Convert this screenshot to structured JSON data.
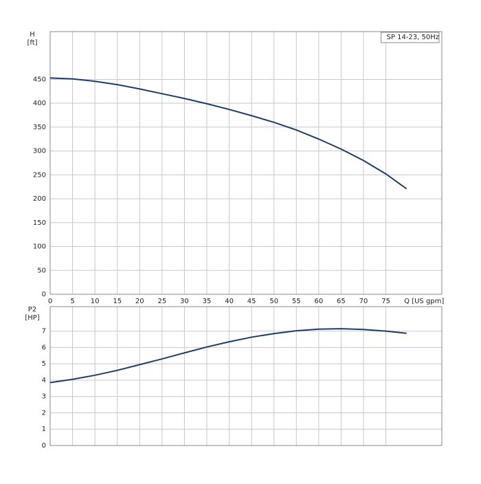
{
  "chart_data": [
    {
      "type": "line",
      "legend_text": "SP 14-23, 50Hz",
      "y_label": "H",
      "y_unit": "[ft]",
      "x_label": "Q [US gpm]",
      "x": [
        0,
        5,
        10,
        15,
        20,
        25,
        30,
        35,
        40,
        45,
        50,
        55,
        60,
        65,
        70,
        75,
        79.6
      ],
      "series": [
        {
          "color": "#1c3b6e",
          "values": [
            453,
            451,
            446,
            439,
            430,
            420,
            410,
            399,
            387,
            374,
            360,
            344,
            325,
            304,
            280,
            252,
            221
          ]
        }
      ],
      "xlim": [
        0,
        87.5
      ],
      "xticks": [
        0,
        5,
        10,
        15,
        20,
        25,
        30,
        35,
        40,
        45,
        50,
        55,
        60,
        65,
        70,
        75
      ],
      "ylim": [
        0,
        550
      ],
      "yticks": [
        0,
        50,
        100,
        150,
        200,
        250,
        300,
        350,
        400,
        450
      ],
      "grid": true
    },
    {
      "type": "line",
      "y_label": "P2",
      "y_unit": "[HP]",
      "x": [
        0,
        5,
        10,
        15,
        20,
        25,
        30,
        35,
        40,
        45,
        50,
        55,
        60,
        65,
        70,
        75,
        79.6
      ],
      "series": [
        {
          "color": "#1c3b6e",
          "values": [
            3.85,
            4.05,
            4.3,
            4.6,
            4.95,
            5.3,
            5.67,
            6.03,
            6.35,
            6.63,
            6.85,
            7.02,
            7.12,
            7.15,
            7.1,
            7.0,
            6.87
          ]
        }
      ],
      "xlim": [
        0,
        87.5
      ],
      "ylim": [
        0,
        8.5
      ],
      "yticks": [
        0,
        1,
        2,
        3,
        4,
        5,
        6,
        7
      ],
      "grid": true
    }
  ]
}
